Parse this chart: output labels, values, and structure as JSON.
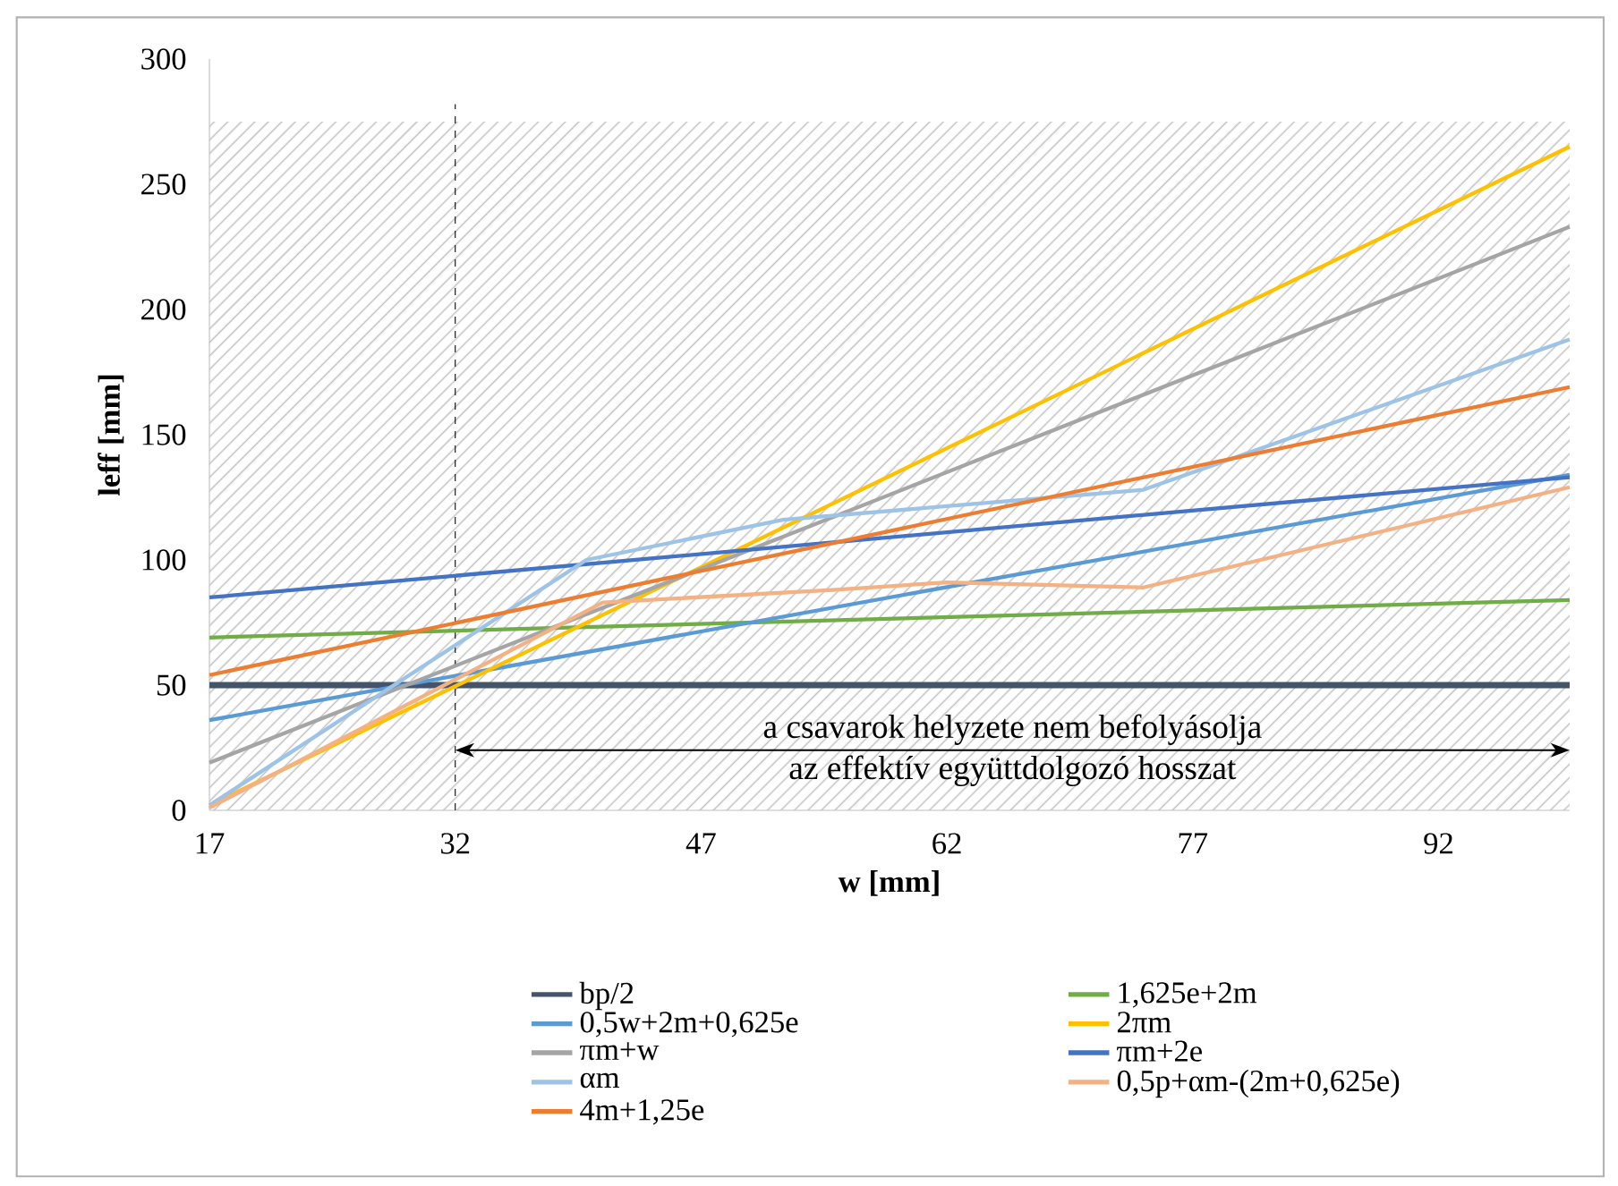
{
  "chart_data": {
    "type": "line",
    "xlabel": "w [mm]",
    "ylabel": "leff [mm]",
    "xlim": [
      17,
      100
    ],
    "xticks": [
      17,
      32,
      47,
      62,
      77,
      92
    ],
    "ylim": [
      0,
      300
    ],
    "yticks": [
      0,
      50,
      100,
      150,
      200,
      250,
      300
    ],
    "legend": "bottom",
    "marker": "none",
    "line_style": "solid",
    "bands": [
      {
        "axis": "y",
        "from": 0,
        "to": 275,
        "color": "#bfbfbf"
      }
    ],
    "ref_lines": [
      {
        "axis": "x",
        "value": 32,
        "color": "#000000",
        "line_style": "dashed"
      }
    ],
    "annotations": [
      "a csavarok helyzete nem befolyásolja",
      "az effektív együttdolgozó hosszat"
    ],
    "series": [
      {
        "name": "bp/2",
        "color": "#44546a",
        "x": [
          17,
          100
        ],
        "values": [
          50,
          50
        ]
      },
      {
        "name": "1,625e+2m",
        "color": "#70ad47",
        "x": [
          17,
          100
        ],
        "values": [
          69,
          84
        ]
      },
      {
        "name": "0,5w+2m+0,625e",
        "color": "#5b9bd5",
        "x": [
          17,
          100
        ],
        "values": [
          36,
          134
        ]
      },
      {
        "name": "2πm",
        "color": "#ffc000",
        "x": [
          17,
          100
        ],
        "values": [
          2,
          265
        ]
      },
      {
        "name": "πm+w",
        "color": "#a5a5a5",
        "x": [
          17,
          100
        ],
        "values": [
          19,
          233
        ]
      },
      {
        "name": "πm+2e",
        "color": "#4472c4",
        "x": [
          17,
          100
        ],
        "values": [
          85,
          133
        ]
      },
      {
        "name": "αm",
        "color": "#9dc3e6",
        "x": [
          17,
          40,
          52,
          74,
          100
        ],
        "values": [
          2,
          100,
          116,
          128,
          188
        ]
      },
      {
        "name": "0,5p+αm-(2m+0,625e)",
        "color": "#f4b183",
        "x": [
          17,
          41,
          55,
          62,
          74,
          100
        ],
        "values": [
          1,
          83,
          88,
          91,
          89,
          129
        ]
      },
      {
        "name": "4m+1,25e",
        "color": "#ed7d31",
        "x": [
          17,
          100
        ],
        "values": [
          54,
          169
        ]
      }
    ]
  }
}
